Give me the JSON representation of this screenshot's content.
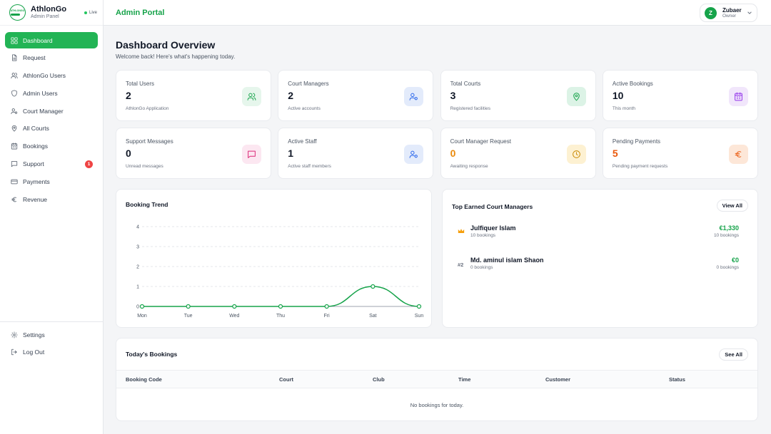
{
  "brand": {
    "name": "AthlonGo",
    "subtitle": "Admin Panel",
    "status": "Live",
    "logo_text": "ATHLONGO"
  },
  "topbar": {
    "title": "Admin Portal",
    "user": {
      "initial": "Z",
      "name": "Zubaer",
      "role": "Owner"
    }
  },
  "sidebar": {
    "items": [
      {
        "label": "Dashboard",
        "icon": "grid-icon"
      },
      {
        "label": "Request",
        "icon": "document-icon"
      },
      {
        "label": "AthlonGo Users",
        "icon": "users-icon"
      },
      {
        "label": "Admin Users",
        "icon": "shield-icon"
      },
      {
        "label": "Court Manager",
        "icon": "user-gear-icon"
      },
      {
        "label": "All Courts",
        "icon": "map-pin-icon"
      },
      {
        "label": "Bookings",
        "icon": "calendar-icon"
      },
      {
        "label": "Support",
        "icon": "chat-icon",
        "badge": "1"
      },
      {
        "label": "Payments",
        "icon": "credit-card-icon"
      },
      {
        "label": "Revenue",
        "icon": "euro-icon"
      }
    ],
    "bottom": [
      {
        "label": "Settings",
        "icon": "gear-icon"
      },
      {
        "label": "Log Out",
        "icon": "logout-icon"
      }
    ]
  },
  "page": {
    "title": "Dashboard Overview",
    "subtitle": "Welcome back! Here's what's happening today."
  },
  "stats": [
    {
      "label": "Total Users",
      "value": "2",
      "note": "AthlonGo Application",
      "icon": "users-icon",
      "color": "#16a34a",
      "bg": "#e6f6ec",
      "value_color": "#111827"
    },
    {
      "label": "Court Managers",
      "value": "2",
      "note": "Active accounts",
      "icon": "user-gear-icon",
      "color": "#2563eb",
      "bg": "#e3ebfb",
      "value_color": "#111827"
    },
    {
      "label": "Total Courts",
      "value": "3",
      "note": "Registered facilities",
      "icon": "map-pin-icon",
      "color": "#16a34a",
      "bg": "#dcf3e6",
      "value_color": "#111827"
    },
    {
      "label": "Active Bookings",
      "value": "10",
      "note": "This month",
      "icon": "calendar-icon",
      "color": "#9333ea",
      "bg": "#f1e6fb",
      "value_color": "#111827"
    },
    {
      "label": "Support Messages",
      "value": "0",
      "note": "Unread messages",
      "icon": "chat-icon",
      "color": "#db2777",
      "bg": "#fce7f1",
      "value_color": "#111827"
    },
    {
      "label": "Active Staff",
      "value": "1",
      "note": "Active staff members",
      "icon": "user-gear-icon",
      "color": "#2563eb",
      "bg": "#e3ebfb",
      "value_color": "#111827"
    },
    {
      "label": "Court Manager Request",
      "value": "0",
      "note": "Awaiting response",
      "icon": "clock-icon",
      "color": "#ca8a04",
      "bg": "#fdf1d2",
      "value_color": "#ea8a0c"
    },
    {
      "label": "Pending Payments",
      "value": "5",
      "note": "Pending payment requests",
      "icon": "euro-icon",
      "color": "#ea580c",
      "bg": "#fde7d8",
      "value_color": "#ea580c"
    }
  ],
  "trend": {
    "title": "Booking Trend"
  },
  "chart_data": {
    "type": "line",
    "categories": [
      "Mon",
      "Tue",
      "Wed",
      "Thu",
      "Fri",
      "Sat",
      "Sun"
    ],
    "values": [
      0,
      0,
      0,
      0,
      0,
      1,
      0
    ],
    "yticks": [
      0,
      1,
      2,
      3,
      4
    ],
    "ylim": [
      0,
      4
    ],
    "color": "#16a34a",
    "grid": true
  },
  "top_managers": {
    "title": "Top Earned Court Managers",
    "view_all": "View All",
    "items": [
      {
        "rank_icon": "crown-icon",
        "rank": "",
        "name": "Julfiquer Islam",
        "bookings": "10 bookings",
        "amount": "€1,330",
        "bookings_right": "10 bookings"
      },
      {
        "rank_icon": "",
        "rank": "#2",
        "name": "Md. aminul islam Shaon",
        "bookings": "0 bookings",
        "amount": "€0",
        "bookings_right": "0 bookings"
      }
    ]
  },
  "today": {
    "title": "Today's Bookings",
    "see_all": "See All",
    "columns": [
      "Booking Code",
      "Court",
      "Club",
      "Time",
      "Customer",
      "Status"
    ],
    "empty": "No bookings for today."
  }
}
